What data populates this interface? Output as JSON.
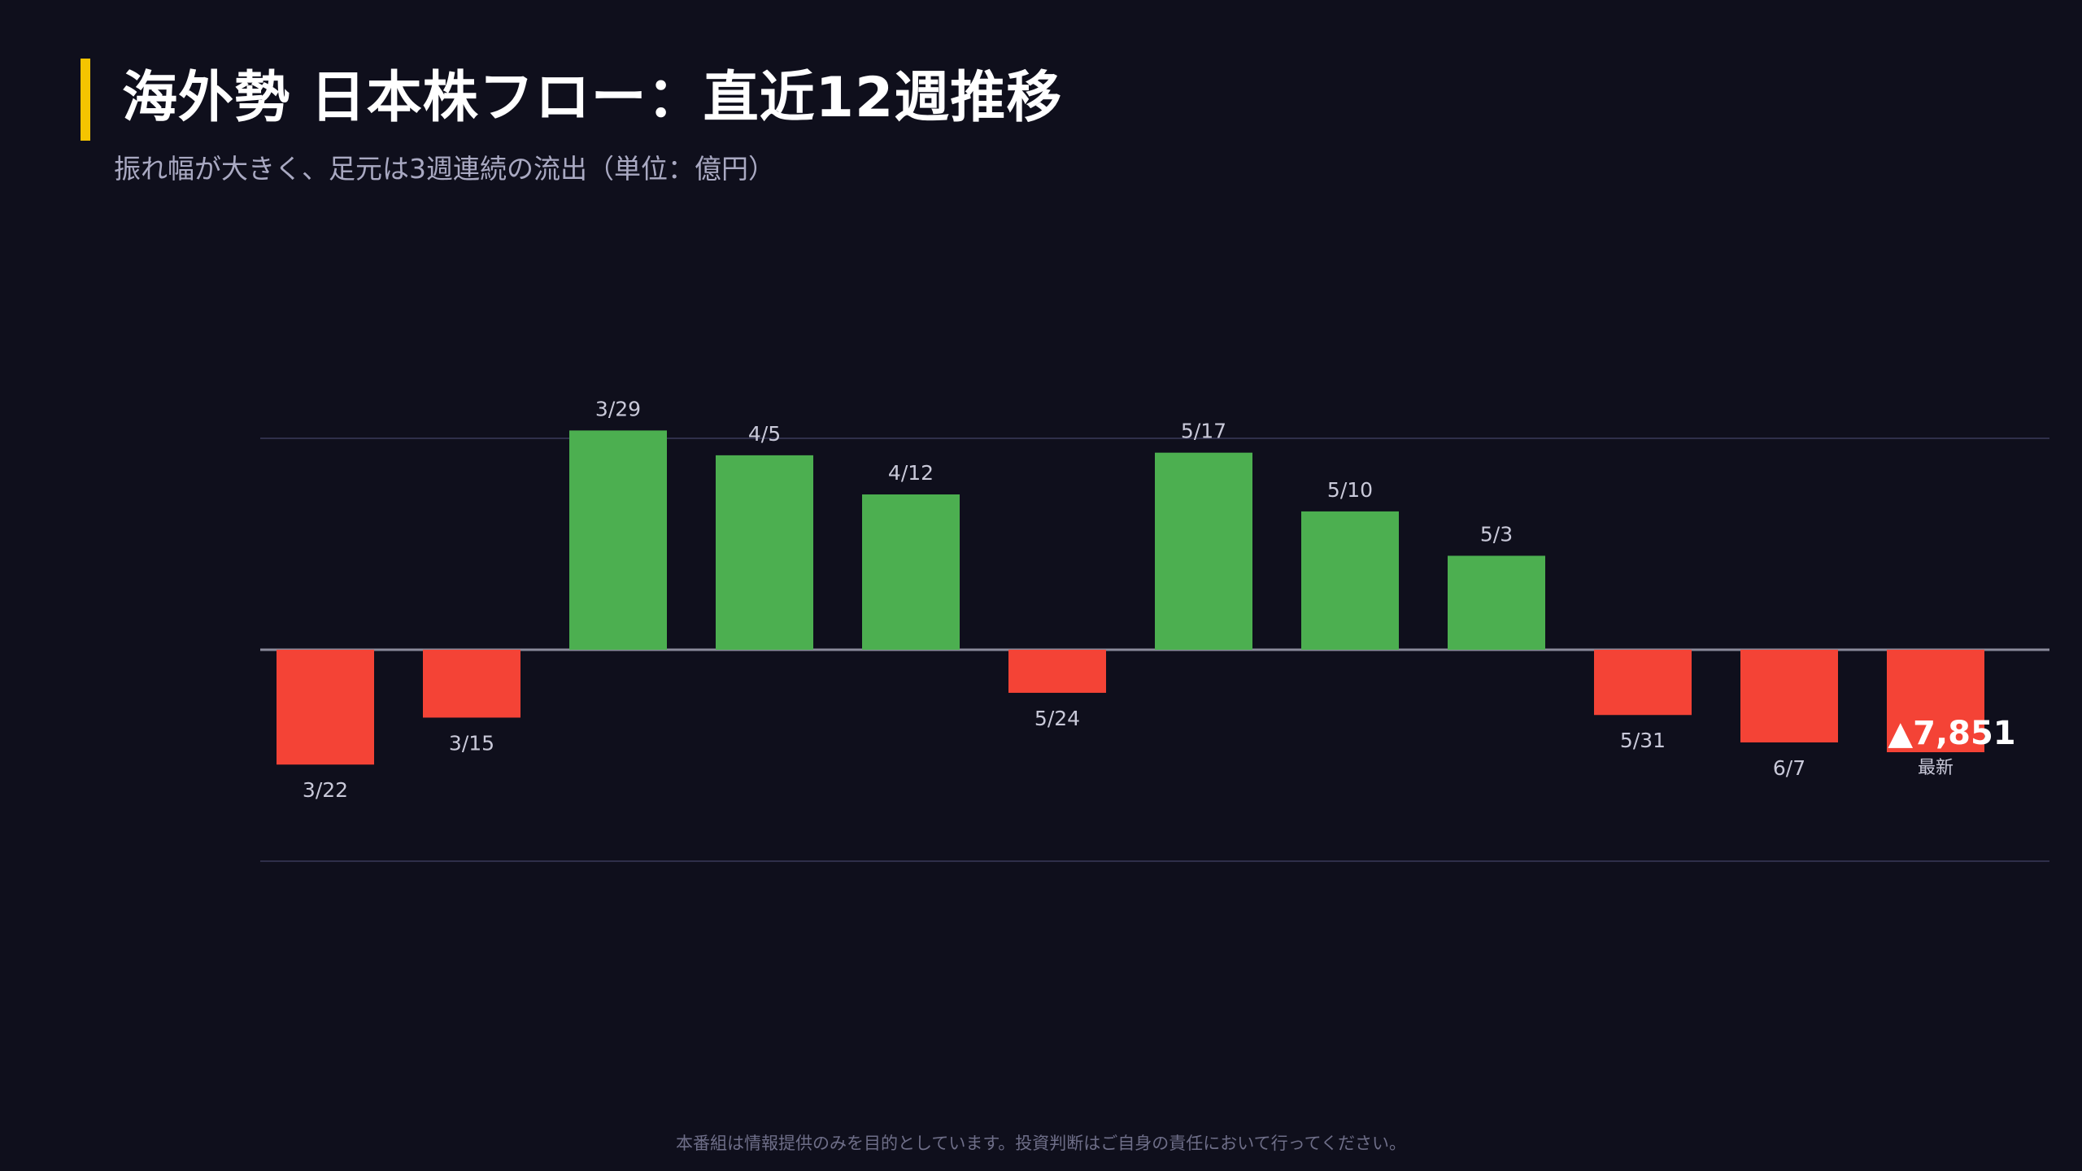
{
  "header": {
    "title": "海外勢 日本株フロー：直近12週推移",
    "subtitle": "振れ幅が大きく、足元は3週連続の流出（単位：億円）"
  },
  "footer": {
    "disclaimer": "本番組は情報提供のみを目的としています。投資判断はご自身の責任において行ってください。"
  },
  "colors": {
    "background": "#0f0f1c",
    "accent": "#f5c400",
    "inflow": "#4caf50",
    "outflow": "#f44336",
    "gridline": "#2f2f4a",
    "zero_line": "#8a8a9a"
  },
  "chart_data": {
    "type": "bar",
    "title": "",
    "xlabel": "",
    "ylabel": "",
    "categories": [
      "3/22",
      "3/15",
      "3/29",
      "4/5",
      "4/12",
      "5/24",
      "5/17",
      "5/10",
      "5/3",
      "5/31",
      "6/7",
      "最新"
    ],
    "values": [
      -8800,
      -5200,
      16800,
      14900,
      11900,
      -3300,
      15100,
      10600,
      7200,
      -5000,
      -7100,
      -7851
    ],
    "ylim": [
      -16200,
      16200
    ],
    "gridlines": [
      16200,
      0,
      -16200
    ],
    "grid": true,
    "legend": "none",
    "latest": {
      "value_label": "▲7,851",
      "caption": "最新"
    }
  }
}
